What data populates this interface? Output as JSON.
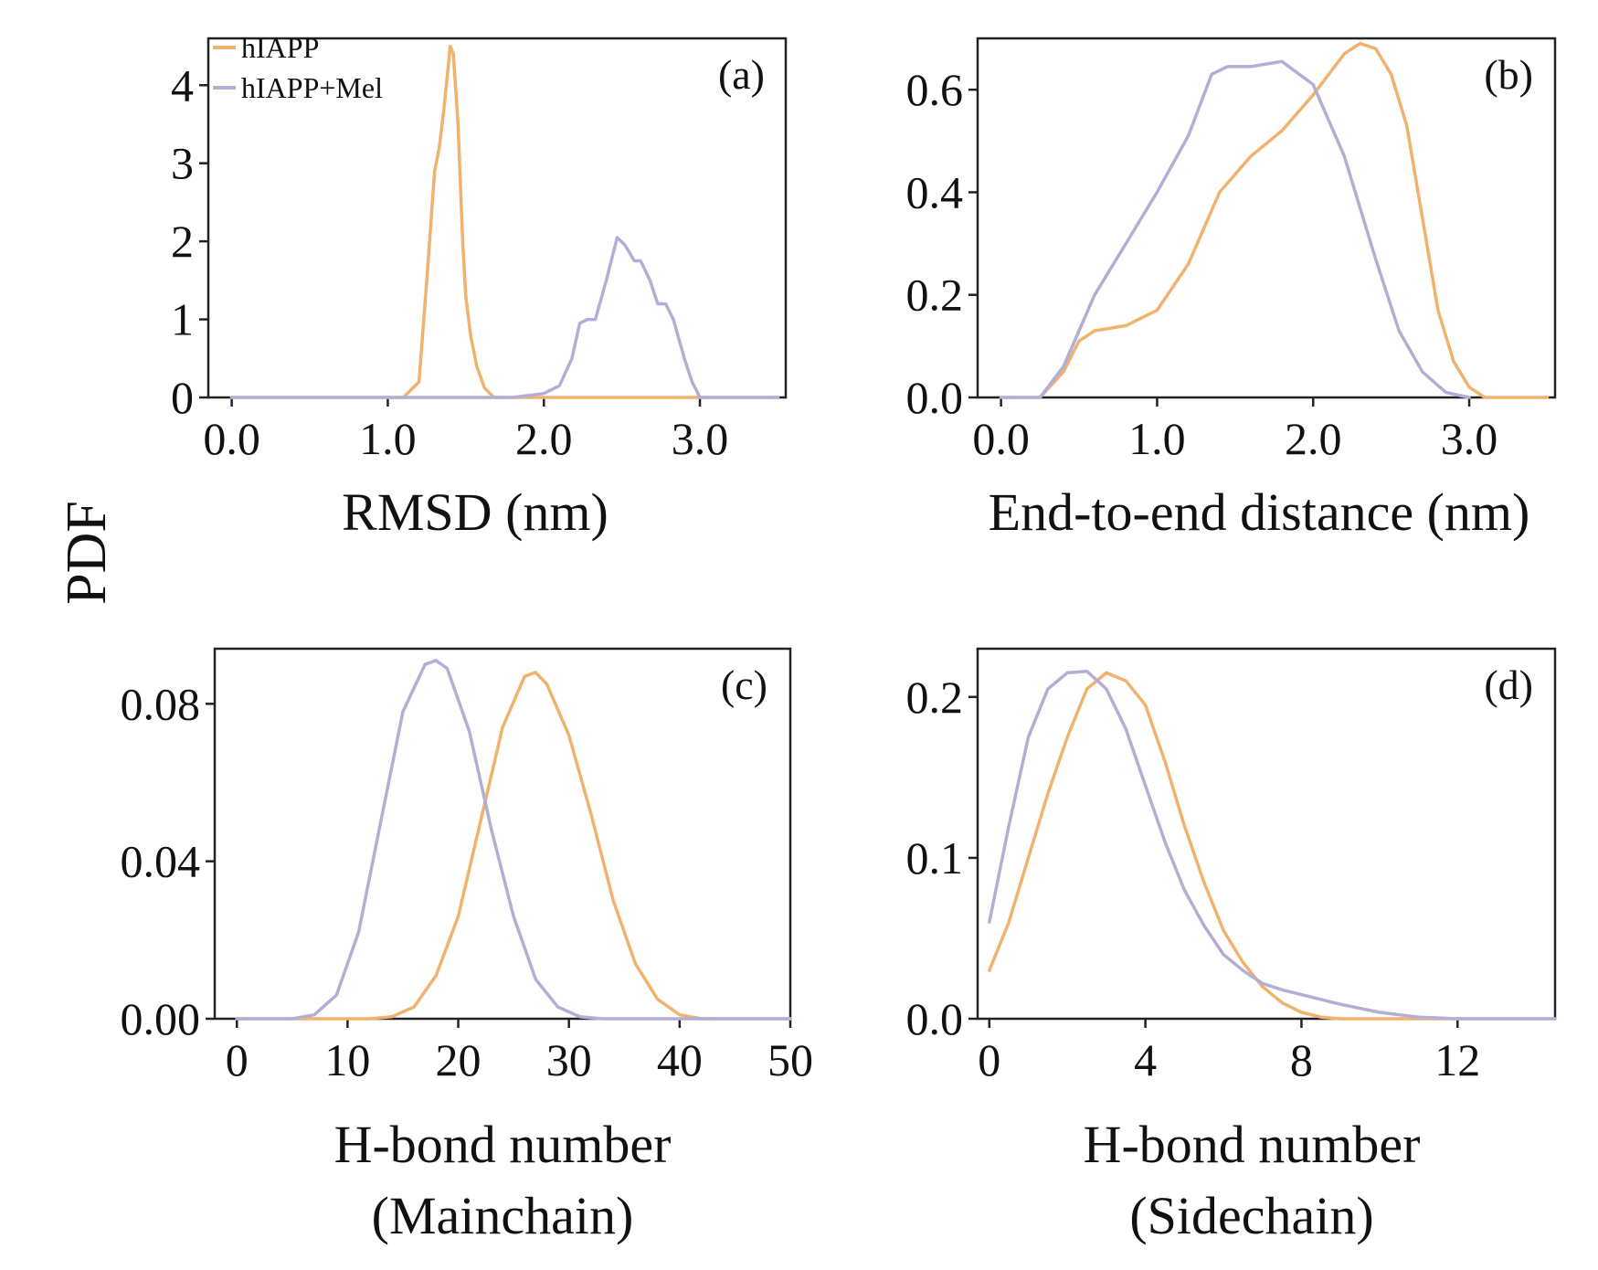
{
  "figure": {
    "shared_ylabel": "PDF",
    "colors": {
      "hIAPP": "#f0b26e",
      "hIAPP+Mel": "#b3aed6"
    }
  },
  "chart_data": [
    {
      "type": "line",
      "panel": "(a)",
      "xlabel": "RMSD (nm)",
      "ylabel": "PDF",
      "xlim": [
        -0.15,
        3.55
      ],
      "ylim": [
        0,
        4.6
      ],
      "xticks": [
        0,
        1,
        2,
        3
      ],
      "xtick_labels": [
        "0.0",
        "1.0",
        "2.0",
        "3.0"
      ],
      "yticks": [
        0,
        1,
        2,
        3,
        4
      ],
      "ytick_labels": [
        "0",
        "1",
        "2",
        "3",
        "4"
      ],
      "legend": [
        "hIAPP",
        "hIAPP+Mel"
      ],
      "legend_position": "top-left",
      "series": [
        {
          "name": "hIAPP",
          "x": [
            0.0,
            1.1,
            1.2,
            1.25,
            1.3,
            1.33,
            1.36,
            1.4,
            1.42,
            1.45,
            1.48,
            1.5,
            1.53,
            1.57,
            1.62,
            1.68,
            3.5
          ],
          "y": [
            0,
            0,
            0.2,
            1.5,
            2.9,
            3.2,
            3.7,
            4.5,
            4.4,
            3.5,
            2.0,
            1.3,
            0.8,
            0.4,
            0.12,
            0,
            0
          ]
        },
        {
          "name": "hIAPP+Mel",
          "x": [
            0.0,
            1.8,
            2.0,
            2.1,
            2.18,
            2.23,
            2.28,
            2.33,
            2.4,
            2.47,
            2.52,
            2.58,
            2.62,
            2.68,
            2.73,
            2.78,
            2.83,
            2.9,
            2.95,
            3.0,
            3.5
          ],
          "y": [
            0,
            0,
            0.05,
            0.15,
            0.5,
            0.95,
            1.0,
            1.0,
            1.5,
            2.05,
            1.95,
            1.75,
            1.75,
            1.5,
            1.2,
            1.2,
            1.0,
            0.5,
            0.2,
            0,
            0
          ]
        }
      ]
    },
    {
      "type": "line",
      "panel": "(b)",
      "xlabel": "End-to-end distance (nm)",
      "ylabel": "PDF",
      "xlim": [
        -0.15,
        3.55
      ],
      "ylim": [
        0,
        0.7
      ],
      "xticks": [
        0,
        1,
        2,
        3
      ],
      "xtick_labels": [
        "0.0",
        "1.0",
        "2.0",
        "3.0"
      ],
      "yticks": [
        0,
        0.2,
        0.4,
        0.6
      ],
      "ytick_labels": [
        "0.0",
        "0.2",
        "0.4",
        "0.6"
      ],
      "series": [
        {
          "name": "hIAPP",
          "x": [
            0.0,
            0.25,
            0.4,
            0.5,
            0.6,
            0.8,
            1.0,
            1.2,
            1.4,
            1.6,
            1.8,
            2.0,
            2.2,
            2.3,
            2.4,
            2.5,
            2.6,
            2.7,
            2.8,
            2.9,
            3.0,
            3.1,
            3.5
          ],
          "y": [
            0,
            0,
            0.05,
            0.11,
            0.13,
            0.14,
            0.17,
            0.26,
            0.4,
            0.47,
            0.52,
            0.59,
            0.67,
            0.69,
            0.68,
            0.63,
            0.53,
            0.35,
            0.17,
            0.07,
            0.02,
            0,
            0
          ]
        },
        {
          "name": "hIAPP+Mel",
          "x": [
            0.0,
            0.25,
            0.4,
            0.5,
            0.6,
            0.8,
            1.0,
            1.2,
            1.35,
            1.45,
            1.6,
            1.8,
            2.0,
            2.2,
            2.4,
            2.55,
            2.7,
            2.85,
            3.0
          ],
          "y": [
            0,
            0,
            0.06,
            0.13,
            0.2,
            0.3,
            0.4,
            0.51,
            0.63,
            0.645,
            0.645,
            0.655,
            0.61,
            0.47,
            0.27,
            0.13,
            0.05,
            0.01,
            0
          ]
        }
      ]
    },
    {
      "type": "line",
      "panel": "(c)",
      "xlabel": "H-bond number\n(Mainchain)",
      "ylabel": "PDF",
      "xlim": [
        -2,
        50
      ],
      "ylim": [
        0,
        0.094
      ],
      "xticks": [
        0,
        10,
        20,
        30,
        40,
        50
      ],
      "xtick_labels": [
        "0",
        "10",
        "20",
        "30",
        "40",
        "50"
      ],
      "yticks": [
        0,
        0.04,
        0.08
      ],
      "ytick_labels": [
        "0.00",
        "0.04",
        "0.08"
      ],
      "series": [
        {
          "name": "hIAPP",
          "x": [
            0,
            12,
            14,
            16,
            18,
            20,
            22,
            24,
            26,
            27,
            28,
            30,
            32,
            34,
            36,
            38,
            40,
            42,
            50
          ],
          "y": [
            0,
            0,
            0.0005,
            0.003,
            0.011,
            0.026,
            0.05,
            0.074,
            0.087,
            0.088,
            0.085,
            0.072,
            0.052,
            0.03,
            0.014,
            0.005,
            0.001,
            0,
            0
          ]
        },
        {
          "name": "hIAPP+Mel",
          "x": [
            0,
            5,
            7,
            9,
            11,
            13,
            15,
            17,
            18,
            19,
            21,
            23,
            25,
            27,
            29,
            31,
            33,
            50
          ],
          "y": [
            0,
            0,
            0.001,
            0.006,
            0.022,
            0.05,
            0.078,
            0.09,
            0.091,
            0.089,
            0.073,
            0.048,
            0.026,
            0.01,
            0.003,
            0.0005,
            0,
            0
          ]
        }
      ]
    },
    {
      "type": "line",
      "panel": "(d)",
      "xlabel": "H-bond number\n(Sidechain)",
      "ylabel": "PDF",
      "xlim": [
        -0.3,
        14.5
      ],
      "ylim": [
        0,
        0.23
      ],
      "xticks": [
        0,
        4,
        8,
        12
      ],
      "xtick_labels": [
        "0",
        "4",
        "8",
        "12"
      ],
      "yticks": [
        0,
        0.1,
        0.2
      ],
      "ytick_labels": [
        "0.0",
        "0.1",
        "0.2"
      ],
      "series": [
        {
          "name": "hIAPP",
          "x": [
            0,
            0.5,
            1,
            1.5,
            2,
            2.5,
            3,
            3.5,
            4,
            4.5,
            5,
            5.5,
            6,
            6.5,
            7,
            7.5,
            8,
            8.5,
            9,
            10,
            14.5
          ],
          "y": [
            0.03,
            0.06,
            0.1,
            0.14,
            0.175,
            0.205,
            0.215,
            0.21,
            0.195,
            0.16,
            0.12,
            0.085,
            0.055,
            0.035,
            0.02,
            0.01,
            0.004,
            0.001,
            0,
            0,
            0
          ]
        },
        {
          "name": "hIAPP+Mel",
          "x": [
            0,
            0.5,
            1,
            1.5,
            2,
            2.5,
            3,
            3.5,
            4,
            4.5,
            5,
            5.5,
            6,
            6.5,
            7,
            7.5,
            8,
            9,
            10,
            11,
            12,
            14.5
          ],
          "y": [
            0.06,
            0.12,
            0.175,
            0.205,
            0.215,
            0.216,
            0.205,
            0.18,
            0.145,
            0.11,
            0.08,
            0.058,
            0.04,
            0.03,
            0.022,
            0.018,
            0.015,
            0.009,
            0.004,
            0.001,
            0,
            0
          ]
        }
      ]
    }
  ]
}
